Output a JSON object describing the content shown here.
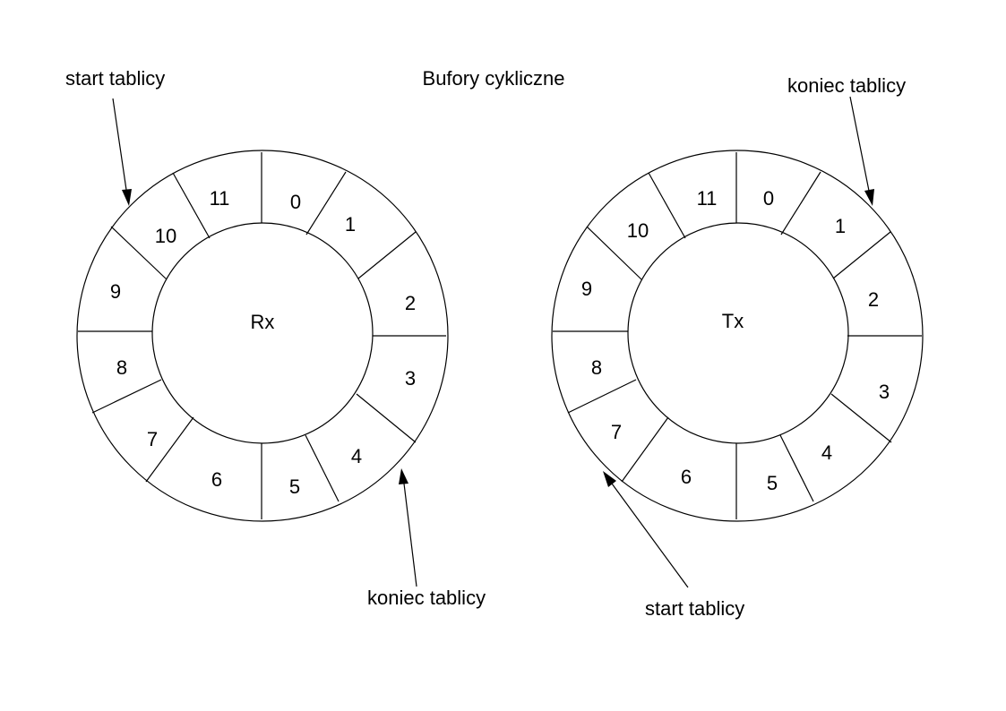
{
  "title": "Bufory cykliczne",
  "buffers": [
    {
      "id": "rx",
      "center_label": "Rx",
      "slots": [
        "0",
        "1",
        "2",
        "3",
        "4",
        "5",
        "6",
        "7",
        "8",
        "9",
        "10",
        "11"
      ],
      "start_annotation": "start tablicy",
      "end_annotation": "koniec tablicy"
    },
    {
      "id": "tx",
      "center_label": "Tx",
      "slots": [
        "0",
        "1",
        "2",
        "3",
        "4",
        "5",
        "6",
        "7",
        "8",
        "9",
        "10",
        "11"
      ],
      "start_annotation": "start tablicy",
      "end_annotation": "koniec tablicy"
    }
  ]
}
